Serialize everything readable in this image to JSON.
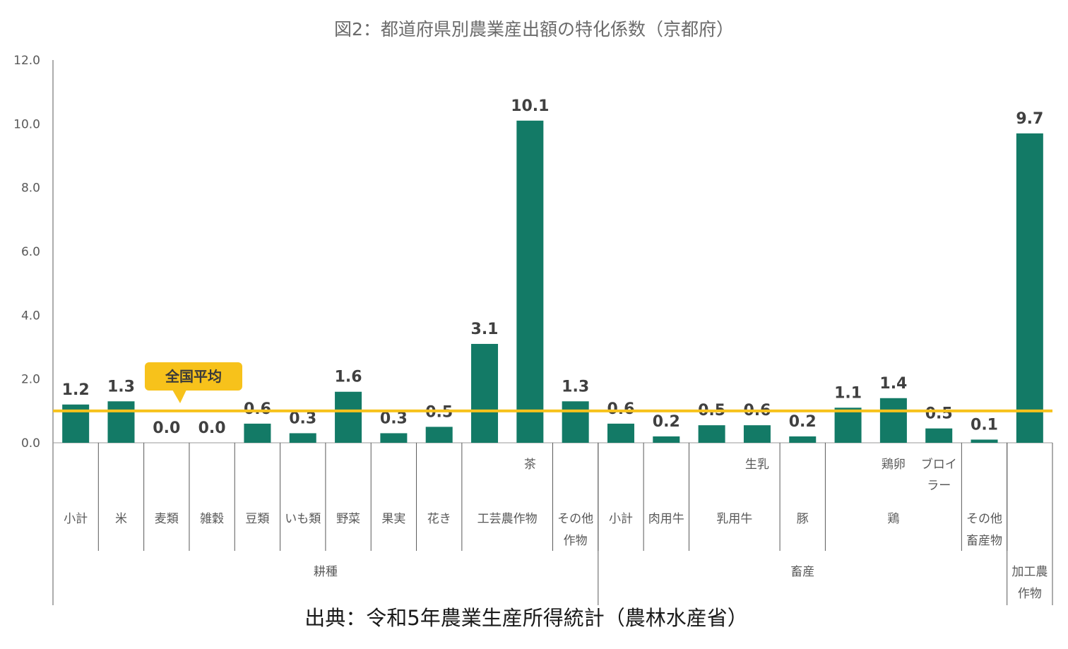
{
  "title": "図2：都道府県別農業産出額の特化係数（京都府）",
  "source": "出典：令和5年農業生産所得統計（農林水産省）",
  "colors": {
    "bar": "#137a66",
    "avg_line": "#f7c21b",
    "callout": "#f7c21b",
    "axis": "#595959",
    "label": "#595959"
  },
  "chart_data": {
    "type": "bar",
    "ylim": [
      0,
      12
    ],
    "yticks": [
      "0.0",
      "2.0",
      "4.0",
      "6.0",
      "8.0",
      "10.0",
      "12.0"
    ],
    "grid": false,
    "reference_line": {
      "value": 1.0,
      "label": "全国平均"
    },
    "categories": [
      {
        "group": "耕種",
        "sub": null,
        "label": [
          "小計"
        ],
        "value": 1.2,
        "label_text": "1.2"
      },
      {
        "group": "耕種",
        "sub": null,
        "label": [
          "米"
        ],
        "value": 1.3,
        "label_text": "1.3"
      },
      {
        "group": "耕種",
        "sub": null,
        "label": [
          "麦類"
        ],
        "value": 0.0,
        "label_text": "0.0"
      },
      {
        "group": "耕種",
        "sub": null,
        "label": [
          "雑穀"
        ],
        "value": 0.0,
        "label_text": "0.0"
      },
      {
        "group": "耕種",
        "sub": null,
        "label": [
          "豆類"
        ],
        "value": 0.6,
        "label_text": "0.6"
      },
      {
        "group": "耕種",
        "sub": null,
        "label": [
          "いも類"
        ],
        "value": 0.3,
        "label_text": "0.3"
      },
      {
        "group": "耕種",
        "sub": null,
        "label": [
          "野菜"
        ],
        "value": 1.6,
        "label_text": "1.6"
      },
      {
        "group": "耕種",
        "sub": null,
        "label": [
          "果実"
        ],
        "value": 0.3,
        "label_text": "0.3"
      },
      {
        "group": "耕種",
        "sub": null,
        "label": [
          "花き"
        ],
        "value": 0.5,
        "label_text": "0.5"
      },
      {
        "group": "耕種",
        "sub": "",
        "label": [
          "工芸農作物"
        ],
        "value": 3.1,
        "label_text": "3.1"
      },
      {
        "group": "耕種",
        "sub": "茶",
        "label": [
          "工芸農作物"
        ],
        "value": 10.1,
        "label_text": "10.1"
      },
      {
        "group": "耕種",
        "sub": null,
        "label": [
          "その他",
          "作物"
        ],
        "value": 1.3,
        "label_text": "1.3"
      },
      {
        "group": "畜産",
        "sub": null,
        "label": [
          "小計"
        ],
        "value": 0.6,
        "label_text": "0.6"
      },
      {
        "group": "畜産",
        "sub": null,
        "label": [
          "肉用牛"
        ],
        "value": 0.2,
        "label_text": "0.2"
      },
      {
        "group": "畜産",
        "sub": "",
        "label": [
          "乳用牛"
        ],
        "value": 0.55,
        "label_text": "0.5"
      },
      {
        "group": "畜産",
        "sub": "生乳",
        "label": [
          "乳用牛"
        ],
        "value": 0.55,
        "label_text": "0.6"
      },
      {
        "group": "畜産",
        "sub": null,
        "label": [
          "豚"
        ],
        "value": 0.2,
        "label_text": "0.2"
      },
      {
        "group": "畜産",
        "sub": "",
        "label": [
          "鶏"
        ],
        "value": 1.1,
        "label_text": "1.1"
      },
      {
        "group": "畜産",
        "sub": "鶏卵",
        "label": [
          "鶏"
        ],
        "value": 1.4,
        "label_text": "1.4"
      },
      {
        "group": "畜産",
        "sub": "ブロイラー",
        "label": [
          "鶏"
        ],
        "value": 0.45,
        "label_text": "0.5"
      },
      {
        "group": "畜産",
        "sub": null,
        "label": [
          "その他",
          "畜産物"
        ],
        "value": 0.1,
        "label_text": "0.1"
      },
      {
        "group": "加工農作物",
        "sub": null,
        "label": [
          "加工農",
          "作物"
        ],
        "value": 9.7,
        "label_text": "9.7"
      }
    ],
    "x_tier2_labels": [
      {
        "text": "小計",
        "from": 0,
        "to": 0
      },
      {
        "text": "米",
        "from": 1,
        "to": 1
      },
      {
        "text": "麦類",
        "from": 2,
        "to": 2
      },
      {
        "text": "雑穀",
        "from": 3,
        "to": 3
      },
      {
        "text": "豆類",
        "from": 4,
        "to": 4
      },
      {
        "text": "いも類",
        "from": 5,
        "to": 5
      },
      {
        "text": "野菜",
        "from": 6,
        "to": 6
      },
      {
        "text": "果実",
        "from": 7,
        "to": 7
      },
      {
        "text": "花き",
        "from": 8,
        "to": 8
      },
      {
        "text": "工芸農作物",
        "from": 9,
        "to": 10
      },
      {
        "text": "その他\n作物",
        "from": 11,
        "to": 11
      },
      {
        "text": "小計",
        "from": 12,
        "to": 12
      },
      {
        "text": "肉用牛",
        "from": 13,
        "to": 13
      },
      {
        "text": "乳用牛",
        "from": 14,
        "to": 15
      },
      {
        "text": "豚",
        "from": 16,
        "to": 16
      },
      {
        "text": "鶏",
        "from": 17,
        "to": 19
      },
      {
        "text": "その他\n畜産物",
        "from": 20,
        "to": 20
      }
    ],
    "x_tier1_labels": [
      {
        "text": "耕種",
        "from": 0,
        "to": 11
      },
      {
        "text": "畜産",
        "from": 12,
        "to": 20
      },
      {
        "text": "加工農\n作物",
        "from": 21,
        "to": 21
      }
    ],
    "x_sub_labels": [
      {
        "text": "茶",
        "index": 10
      },
      {
        "text": "生乳",
        "index": 15
      },
      {
        "text": "鶏卵",
        "index": 18
      },
      {
        "text": "ブロイ\nラー",
        "index": 19
      }
    ]
  }
}
